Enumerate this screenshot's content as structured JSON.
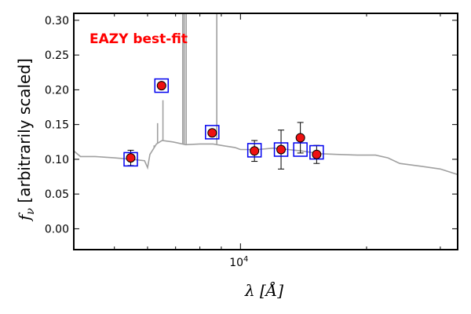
{
  "chart_data": {
    "type": "scatter",
    "title": "",
    "annotation": "EAZY best-fit",
    "annotation_color": "#ff0000",
    "xlabel": "λ [Å]",
    "ylabel": "f_ν [arbitrarily scaled]",
    "x_scale": "log",
    "xlim": [
      4000,
      33000
    ],
    "ylim": [
      -0.03,
      0.31
    ],
    "y_ticks": [
      0.0,
      0.05,
      0.1,
      0.15,
      0.2,
      0.25,
      0.3
    ],
    "y_tick_labels": [
      "0.00",
      "0.05",
      "0.10",
      "0.15",
      "0.20",
      "0.25",
      "0.30"
    ],
    "x_tick_label": "10^4",
    "x_major_tick": 10000,
    "grid": false,
    "colors": {
      "template": "#a0a0a0",
      "observed_fill": "#ee1111",
      "observed_edge": "#000000",
      "model_box": "#0000ee",
      "error_bar": "#000000"
    },
    "series": [
      {
        "name": "",
        "kind": "observed_photometry",
        "points": [
          {
            "x": 5470,
            "y": 0.102,
            "err": 0.011
          },
          {
            "x": 6480,
            "y": 0.206,
            "err": 0.0
          },
          {
            "x": 8560,
            "y": 0.138,
            "err": 0.0
          },
          {
            "x": 10800,
            "y": 0.112,
            "err": 0.015
          },
          {
            "x": 12500,
            "y": 0.114,
            "err": 0.028
          },
          {
            "x": 13900,
            "y": 0.131,
            "err": 0.022
          },
          {
            "x": 15200,
            "y": 0.107,
            "err": 0.013
          }
        ]
      },
      {
        "name": "",
        "kind": "model_photometry",
        "points": [
          {
            "x": 5470,
            "y": 0.1
          },
          {
            "x": 6480,
            "y": 0.206
          },
          {
            "x": 8560,
            "y": 0.139
          },
          {
            "x": 10800,
            "y": 0.113
          },
          {
            "x": 12500,
            "y": 0.114
          },
          {
            "x": 13900,
            "y": 0.114
          },
          {
            "x": 15200,
            "y": 0.11
          }
        ]
      },
      {
        "name": "",
        "kind": "template_spectrum",
        "continuum": [
          {
            "x": 4000,
            "y": 0.112
          },
          {
            "x": 4150,
            "y": 0.104
          },
          {
            "x": 4500,
            "y": 0.104
          },
          {
            "x": 5000,
            "y": 0.102
          },
          {
            "x": 5500,
            "y": 0.1
          },
          {
            "x": 5900,
            "y": 0.098
          },
          {
            "x": 6000,
            "y": 0.088
          },
          {
            "x": 6080,
            "y": 0.107
          },
          {
            "x": 6300,
            "y": 0.122
          },
          {
            "x": 6500,
            "y": 0.127
          },
          {
            "x": 6900,
            "y": 0.125
          },
          {
            "x": 7400,
            "y": 0.121
          },
          {
            "x": 8000,
            "y": 0.122
          },
          {
            "x": 8600,
            "y": 0.122
          },
          {
            "x": 9200,
            "y": 0.119
          },
          {
            "x": 9700,
            "y": 0.117
          },
          {
            "x": 10000,
            "y": 0.114
          },
          {
            "x": 11000,
            "y": 0.114
          },
          {
            "x": 12000,
            "y": 0.116
          },
          {
            "x": 13000,
            "y": 0.114
          },
          {
            "x": 14000,
            "y": 0.112
          },
          {
            "x": 15500,
            "y": 0.108
          },
          {
            "x": 17000,
            "y": 0.107
          },
          {
            "x": 19000,
            "y": 0.106
          },
          {
            "x": 21000,
            "y": 0.106
          },
          {
            "x": 22500,
            "y": 0.102
          },
          {
            "x": 24000,
            "y": 0.094
          },
          {
            "x": 27000,
            "y": 0.09
          },
          {
            "x": 30000,
            "y": 0.086
          },
          {
            "x": 33000,
            "y": 0.078
          }
        ],
        "emission_lines": [
          {
            "x": 6220,
            "y": 0.12
          },
          {
            "x": 6340,
            "y": 0.152
          },
          {
            "x": 6530,
            "y": 0.185
          },
          {
            "x": 7280,
            "y": 0.35
          },
          {
            "x": 7340,
            "y": 0.35
          },
          {
            "x": 7420,
            "y": 0.35
          },
          {
            "x": 8780,
            "y": 0.35
          }
        ]
      }
    ]
  }
}
